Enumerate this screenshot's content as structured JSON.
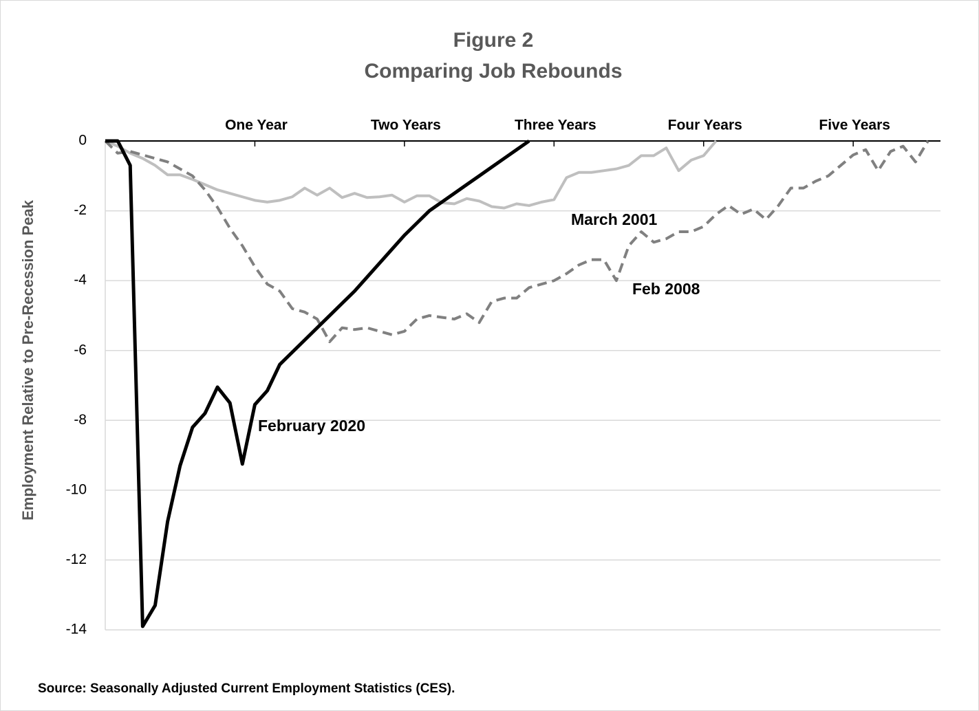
{
  "chart_data": {
    "type": "line",
    "title": "Figure 2",
    "subtitle": "Comparing Job Rebounds",
    "y_label": "Employment Relative to Pre-Recession Peak",
    "source": "Source: Seasonally Adjusted Current Employment Statistics (CES).",
    "annotations": [
      "March 2001",
      "Feb 2008",
      "February 2020"
    ],
    "x": [
      0,
      1,
      2,
      3,
      4,
      5,
      6,
      7,
      8,
      9,
      10,
      11,
      12,
      13,
      14,
      15,
      16,
      17,
      18,
      19,
      20,
      21,
      22,
      23,
      24,
      25,
      26,
      27,
      28,
      29,
      30,
      31,
      32,
      33,
      34,
      35,
      36,
      37,
      38,
      39,
      40,
      41,
      42,
      43,
      44,
      45,
      46,
      47,
      48,
      49,
      50,
      51,
      52,
      53,
      54,
      55,
      56,
      57,
      58,
      59,
      60,
      61,
      62,
      63,
      64,
      65,
      66
    ],
    "xlim": [
      0,
      67
    ],
    "xticks": [
      {
        "value": 12,
        "label": "One Year"
      },
      {
        "value": 24,
        "label": "Two Years"
      },
      {
        "value": 36,
        "label": "Three Years"
      },
      {
        "value": 48,
        "label": "Four Years"
      },
      {
        "value": 60,
        "label": "Five Years"
      }
    ],
    "ylim": [
      -14,
      0
    ],
    "yticks": [
      0,
      -2,
      -4,
      -6,
      -8,
      -10,
      -12,
      -14
    ],
    "grid": true,
    "series": [
      {
        "name": "March 2001",
        "color": "#bfbfbf",
        "dashed": false,
        "values": [
          0,
          -0.15,
          -0.35,
          -0.5,
          -0.7,
          -0.97,
          -0.97,
          -1.1,
          -1.25,
          -1.4,
          -1.5,
          -1.6,
          -1.7,
          -1.75,
          -1.7,
          -1.6,
          -1.35,
          -1.55,
          -1.35,
          -1.62,
          -1.5,
          -1.62,
          -1.6,
          -1.55,
          -1.75,
          -1.57,
          -1.57,
          -1.77,
          -1.8,
          -1.65,
          -1.72,
          -1.88,
          -1.92,
          -1.8,
          -1.85,
          -1.75,
          -1.68,
          -1.05,
          -0.9,
          -0.9,
          -0.85,
          -0.8,
          -0.7,
          -0.42,
          -0.42,
          -0.2,
          -0.85,
          -0.55,
          -0.42,
          0,
          null,
          null,
          null,
          null,
          null,
          null,
          null,
          null,
          null,
          null,
          null,
          null,
          null,
          null,
          null,
          null,
          null
        ]
      },
      {
        "name": "Feb 2008",
        "color": "#808080",
        "dashed": true,
        "values": [
          0,
          -0.35,
          -0.3,
          -0.4,
          -0.5,
          -0.6,
          -0.8,
          -1.0,
          -1.4,
          -1.9,
          -2.5,
          -3.0,
          -3.6,
          -4.1,
          -4.3,
          -4.8,
          -4.9,
          -5.1,
          -5.75,
          -5.35,
          -5.4,
          -5.35,
          -5.45,
          -5.55,
          -5.45,
          -5.1,
          -5.0,
          -5.05,
          -5.1,
          -4.95,
          -5.2,
          -4.6,
          -4.5,
          -4.5,
          -4.2,
          -4.1,
          -4.0,
          -3.8,
          -3.55,
          -3.4,
          -3.4,
          -4.0,
          -3.0,
          -2.6,
          -2.9,
          -2.8,
          -2.6,
          -2.6,
          -2.45,
          -2.1,
          -1.85,
          -2.1,
          -1.95,
          -2.25,
          -1.85,
          -1.35,
          -1.35,
          -1.15,
          -1.0,
          -0.7,
          -0.4,
          -0.25,
          -0.85,
          -0.3,
          -0.15,
          -0.6,
          0
        ]
      },
      {
        "name": "February 2020",
        "color": "#000000",
        "dashed": false,
        "values": [
          0,
          0,
          -0.7,
          -13.9,
          -13.3,
          -10.9,
          -9.3,
          -8.2,
          -7.8,
          -7.05,
          -7.5,
          -9.25,
          -7.55,
          -7.15,
          -6.4,
          -6.05,
          -5.7,
          -5.35,
          -5.0,
          -4.65,
          -4.3,
          -3.9,
          -3.5,
          -3.1,
          -2.7,
          -2.35,
          -2.0,
          -1.75,
          -1.5,
          -1.25,
          -1.0,
          -0.75,
          -0.5,
          -0.25,
          0,
          null,
          null,
          null,
          null,
          null,
          null,
          null,
          null,
          null,
          null,
          null,
          null,
          null,
          null,
          null,
          null,
          null,
          null,
          null,
          null,
          null,
          null,
          null,
          null,
          null,
          null,
          null,
          null,
          null,
          null,
          null,
          null
        ]
      }
    ]
  }
}
